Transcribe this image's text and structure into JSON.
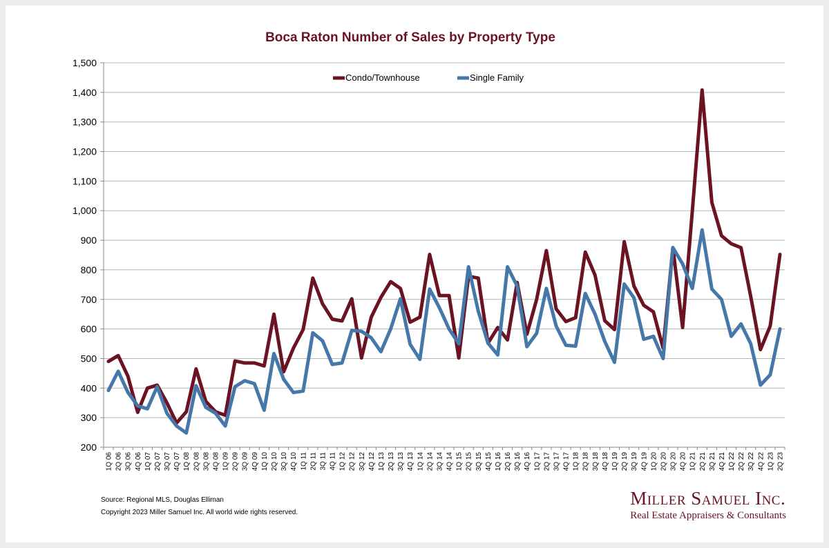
{
  "chart_data": {
    "type": "line",
    "title": "Boca Raton Number of Sales by Property Type",
    "xlabel": "",
    "ylabel": "",
    "ylim": [
      200,
      1500
    ],
    "yticks": [
      200,
      300,
      400,
      500,
      600,
      700,
      800,
      900,
      1000,
      1100,
      1200,
      1300,
      1400,
      1500
    ],
    "ytick_labels": [
      "200",
      "300",
      "400",
      "500",
      "600",
      "700",
      "800",
      "900",
      "1,000",
      "1,100",
      "1,200",
      "1,300",
      "1,400",
      "1,500"
    ],
    "grid": true,
    "legend_position": "top-center",
    "categories": [
      "1Q 06",
      "2Q 06",
      "3Q 06",
      "4Q 06",
      "1Q 07",
      "2Q 07",
      "3Q 07",
      "4Q 07",
      "1Q 08",
      "2Q 08",
      "3Q 08",
      "4Q 08",
      "1Q 09",
      "2Q 09",
      "3Q 09",
      "4Q 09",
      "1Q 10",
      "2Q 10",
      "3Q 10",
      "4Q 10",
      "1Q 11",
      "2Q 11",
      "3Q 11",
      "4Q 11",
      "1Q 12",
      "2Q 12",
      "3Q 12",
      "4Q 12",
      "1Q 13",
      "2Q 13",
      "3Q 13",
      "4Q 13",
      "1Q 14",
      "2Q 14",
      "3Q 14",
      "4Q 14",
      "1Q 15",
      "2Q 15",
      "3Q 15",
      "4Q 15",
      "1Q 16",
      "2Q 16",
      "3Q 16",
      "4Q 16",
      "1Q 17",
      "2Q 17",
      "3Q 17",
      "4Q 17",
      "1Q 18",
      "2Q 18",
      "3Q 18",
      "4Q 18",
      "1Q 19",
      "2Q 19",
      "3Q 19",
      "4Q 19",
      "1Q 20",
      "2Q 20",
      "3Q 20",
      "4Q 20",
      "1Q 21",
      "2Q 21",
      "3Q 21",
      "4Q 21",
      "1Q 22",
      "2Q 22",
      "3Q 22",
      "4Q 22",
      "1Q 23",
      "2Q 23"
    ],
    "tick_labels": [
      "1Q 06",
      "2Q 06",
      "3Q 06",
      "4Q 06",
      "1Q 07",
      "2Q 07",
      "3Q 07",
      "4Q 07",
      "1Q 08",
      "2Q 08",
      "3Q 08",
      "4Q 08",
      "1Q 09",
      "2Q 09",
      "3Q 09",
      "4Q 09",
      "1Q 10",
      "2Q 10",
      "3Q 10",
      "4Q 10",
      "1Q 11",
      "2Q 11",
      "3Q 11",
      "4Q 11",
      "1Q 12",
      "2Q 12",
      "3Q 12",
      "4Q 12",
      "1Q 13",
      "2Q 13",
      "3Q 13",
      "4Q 13",
      "1Q 14",
      "2Q 14",
      "3Q 14",
      "4Q 14",
      "1Q 15",
      "2Q 15",
      "3Q 15",
      "4Q 15",
      "1Q 16",
      "2Q 16",
      "3Q 16",
      "4Q 16",
      "1Q 17",
      "2Q 17",
      "3Q 17",
      "4Q 17",
      "1Q 18",
      "2Q 18",
      "3Q 18",
      "4Q 18",
      "1Q 19",
      "2Q 19",
      "3Q 19",
      "4Q 19",
      "1Q 20",
      "2Q 20",
      "3Q 20",
      "4Q 20",
      "1Q 21",
      "2Q 21",
      "3Q 21",
      "4Q 21",
      "1Q 22",
      "2Q 22",
      "3Q 22",
      "4Q 22",
      "1Q 23",
      "2Q 23"
    ],
    "series": [
      {
        "name": "Condo/Townhouse",
        "color": "#6b1322",
        "values": [
          490,
          510,
          440,
          318,
          400,
          410,
          350,
          282,
          320,
          465,
          355,
          320,
          308,
          492,
          485,
          485,
          475,
          650,
          455,
          535,
          598,
          772,
          685,
          633,
          627,
          702,
          502,
          640,
          707,
          760,
          737,
          623,
          640,
          852,
          713,
          713,
          502,
          778,
          772,
          552,
          605,
          563,
          757,
          582,
          700,
          865,
          668,
          625,
          638,
          860,
          782,
          628,
          598,
          895,
          745,
          680,
          658,
          535,
          875,
          605,
          1000,
          1408,
          1028,
          915,
          888,
          875,
          710,
          530,
          610,
          852
        ]
      },
      {
        "name": "Single Family",
        "color": "#4677a9",
        "values": [
          392,
          457,
          385,
          340,
          330,
          405,
          315,
          272,
          248,
          408,
          335,
          315,
          272,
          405,
          425,
          415,
          325,
          517,
          430,
          385,
          390,
          587,
          560,
          480,
          485,
          595,
          592,
          570,
          523,
          600,
          702,
          548,
          497,
          735,
          672,
          600,
          550,
          810,
          660,
          552,
          512,
          810,
          745,
          540,
          585,
          737,
          610,
          545,
          542,
          720,
          650,
          558,
          487,
          752,
          705,
          565,
          575,
          500,
          875,
          820,
          737,
          935,
          735,
          700,
          575,
          617,
          550,
          410,
          445,
          600
        ]
      }
    ]
  },
  "footer": {
    "source": "Source: Regional MLS, Douglas Elliman",
    "copyright": "Copyright 2023 Miller Samuel Inc.  All world wide rights reserved."
  },
  "brand": {
    "name": "Miller Samuel Inc.",
    "tagline": "Real Estate Appraisers & Consultants"
  }
}
